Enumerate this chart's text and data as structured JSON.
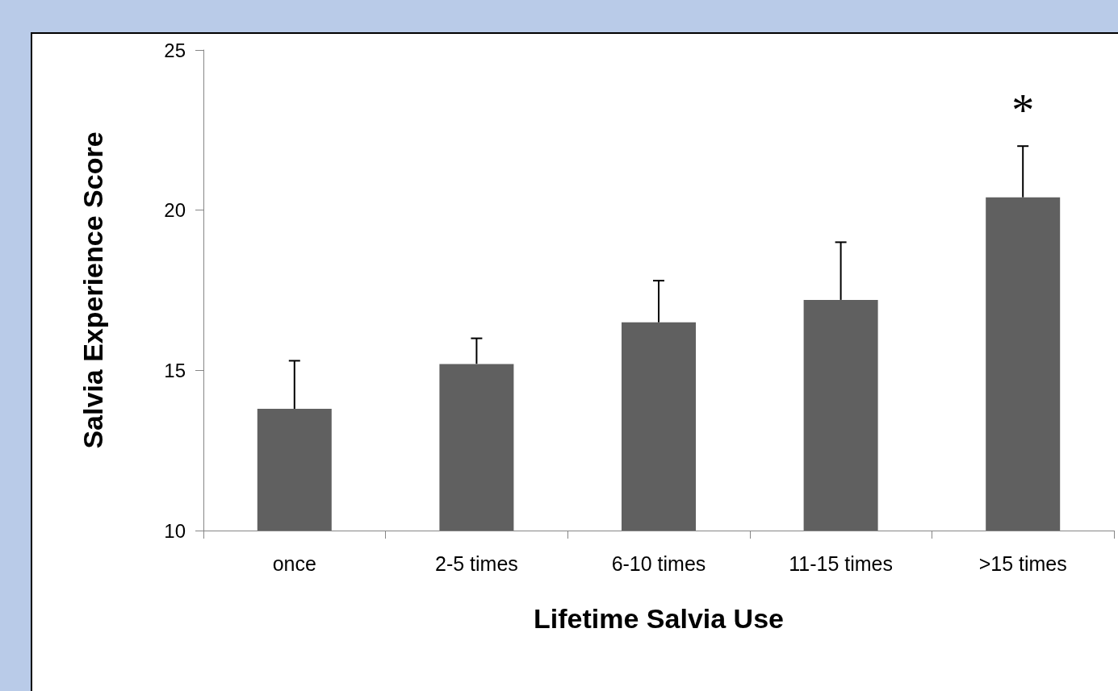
{
  "chart_data": {
    "type": "bar",
    "xlabel": "Lifetime Salvia Use",
    "ylabel": "Salvia Experience Score",
    "categories": [
      "once",
      "2-5 times",
      "6-10 times",
      "11-15 times",
      ">15 times"
    ],
    "values": [
      13.8,
      15.2,
      16.5,
      17.2,
      20.4
    ],
    "errors": [
      [
        13.8,
        15.3
      ],
      [
        15.2,
        16.0
      ],
      [
        16.5,
        17.8
      ],
      [
        17.2,
        19.0
      ],
      [
        20.4,
        22.0
      ]
    ],
    "color": "#606060",
    "ylim": [
      10,
      25
    ],
    "yticks": [
      10,
      15,
      20,
      25
    ],
    "grid": false,
    "annotations": [
      {
        "text": "*",
        "x": ">15 times",
        "y": 22.0
      }
    ]
  }
}
